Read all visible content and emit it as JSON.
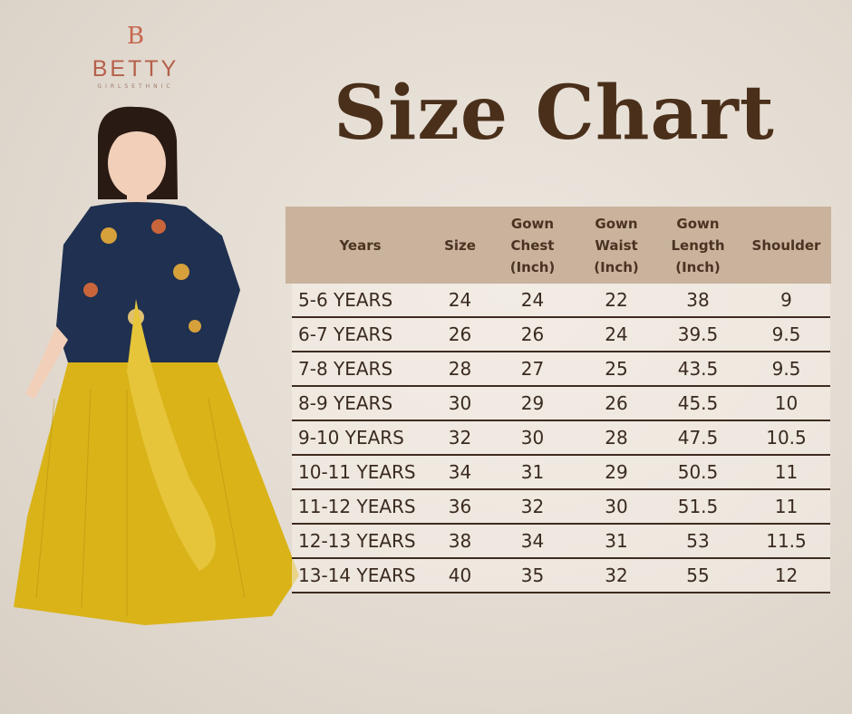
{
  "brand": {
    "mark": "B",
    "name": "BETTY",
    "tagline": "GIRLSETHNIC"
  },
  "title": "Size Chart",
  "colors": {
    "header_bg": "#c9b39c",
    "title": "#4a2f1a",
    "rule": "#3e2c20",
    "brand": "#c7664e"
  },
  "table": {
    "headers": [
      [
        "Years"
      ],
      [
        "Size"
      ],
      [
        "Gown",
        "Chest",
        "(Inch)"
      ],
      [
        "Gown",
        "Waist",
        "(Inch)"
      ],
      [
        "Gown",
        "Length",
        "(Inch)"
      ],
      [
        "Shoulder"
      ]
    ],
    "rows": [
      [
        "5-6 YEARS",
        "24",
        "24",
        "22",
        "38",
        "9"
      ],
      [
        "6-7 YEARS",
        "26",
        "26",
        "24",
        "39.5",
        "9.5"
      ],
      [
        "7-8 YEARS",
        "28",
        "27",
        "25",
        "43.5",
        "9.5"
      ],
      [
        "8-9 YEARS",
        "30",
        "29",
        "26",
        "45.5",
        "10"
      ],
      [
        "9-10 YEARS",
        "32",
        "30",
        "28",
        "47.5",
        "10.5"
      ],
      [
        "10-11 YEARS",
        "34",
        "31",
        "29",
        "50.5",
        "11"
      ],
      [
        "11-12 YEARS",
        "36",
        "32",
        "30",
        "51.5",
        "11"
      ],
      [
        "12-13 YEARS",
        "38",
        "34",
        "31",
        "53",
        "11.5"
      ],
      [
        "13-14 YEARS",
        "40",
        "35",
        "32",
        "55",
        "12"
      ]
    ]
  }
}
